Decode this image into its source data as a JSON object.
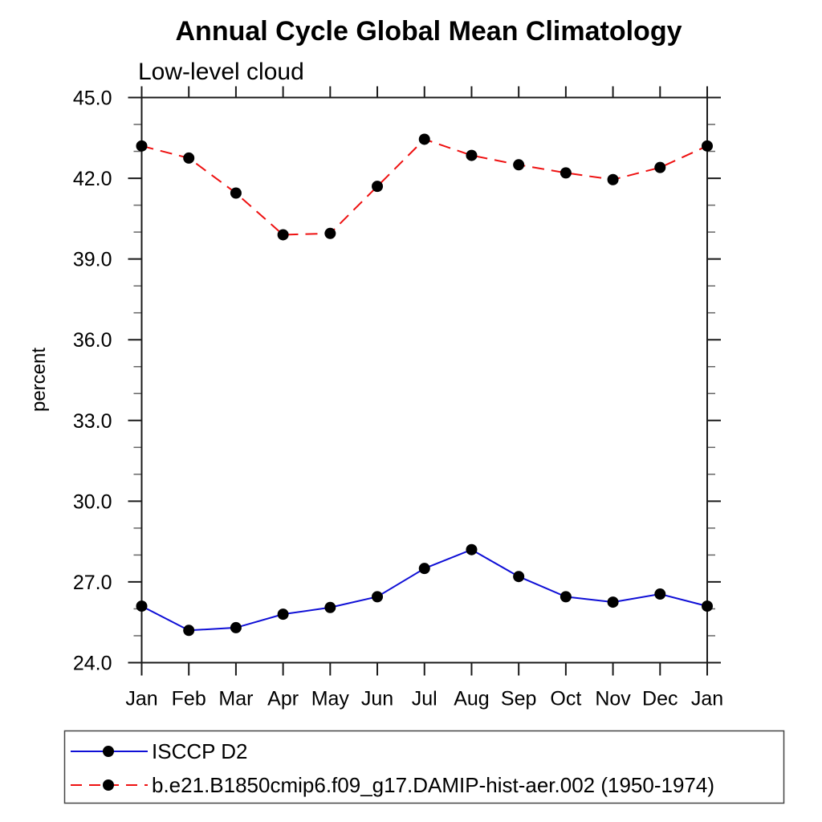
{
  "title": "Annual Cycle Global Mean Climatology",
  "subtitle": "Low-level cloud",
  "y_axis_label": "percent",
  "chart_data": {
    "type": "line",
    "categories": [
      "Jan",
      "Feb",
      "Mar",
      "Apr",
      "May",
      "Jun",
      "Jul",
      "Aug",
      "Sep",
      "Oct",
      "Nov",
      "Dec",
      "Jan"
    ],
    "series": [
      {
        "name": "ISCCP D2",
        "line_color": "#0f0fd6",
        "line_style": "solid",
        "marker": "filled-circle",
        "marker_color": "#000000",
        "values": [
          26.1,
          25.2,
          25.3,
          25.8,
          26.05,
          26.45,
          27.5,
          28.2,
          27.2,
          26.45,
          26.25,
          26.55,
          26.1
        ]
      },
      {
        "name": "b.e21.B1850cmip6.f09_g17.DAMIP-hist-aer.002 (1950-1974)",
        "line_color": "#ee1111",
        "line_style": "dashed",
        "marker": "filled-circle",
        "marker_color": "#000000",
        "values": [
          43.2,
          42.75,
          41.45,
          39.9,
          39.95,
          41.7,
          43.45,
          42.85,
          42.5,
          42.2,
          41.95,
          42.4,
          43.2
        ]
      }
    ],
    "ylim": [
      24.0,
      45.0
    ],
    "y_major_tick_labels": [
      "24.0",
      "27.0",
      "30.0",
      "33.0",
      "36.0",
      "39.0",
      "42.0",
      "45.0"
    ],
    "y_major_step": 3,
    "y_minor_step": 1,
    "xlabel": "",
    "ylabel": "percent",
    "grid": "off",
    "legend_position": "bottom-left box",
    "axis_color": "#1a1a1a",
    "minor_tick_color": "#666666"
  }
}
